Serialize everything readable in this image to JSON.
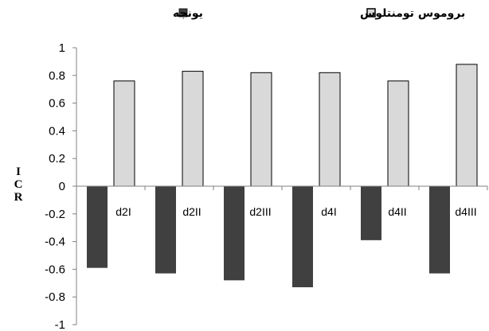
{
  "chart_data": {
    "type": "bar",
    "categories": [
      "d2I",
      "d2II",
      "d2III",
      "d4I",
      "d4II",
      "d4III"
    ],
    "series": [
      {
        "name": "یونجه",
        "values": [
          -0.59,
          -0.63,
          -0.68,
          -0.73,
          -0.39,
          -0.63
        ],
        "color": "#404040"
      },
      {
        "name": "بروموس تومنتلوس",
        "values": [
          0.76,
          0.83,
          0.82,
          0.82,
          0.76,
          0.88
        ],
        "color": "#d9d9d9"
      }
    ],
    "ylabel_chars": [
      "I",
      "C",
      "R"
    ],
    "ylim": [
      -1,
      1
    ],
    "yticks": [
      "1",
      "0.8",
      "0.6",
      "0.4",
      "0.2",
      "0",
      "-0.2",
      "-0.4",
      "-0.6",
      "-0.8",
      "-1"
    ],
    "legend_position": "top",
    "grid": false
  }
}
